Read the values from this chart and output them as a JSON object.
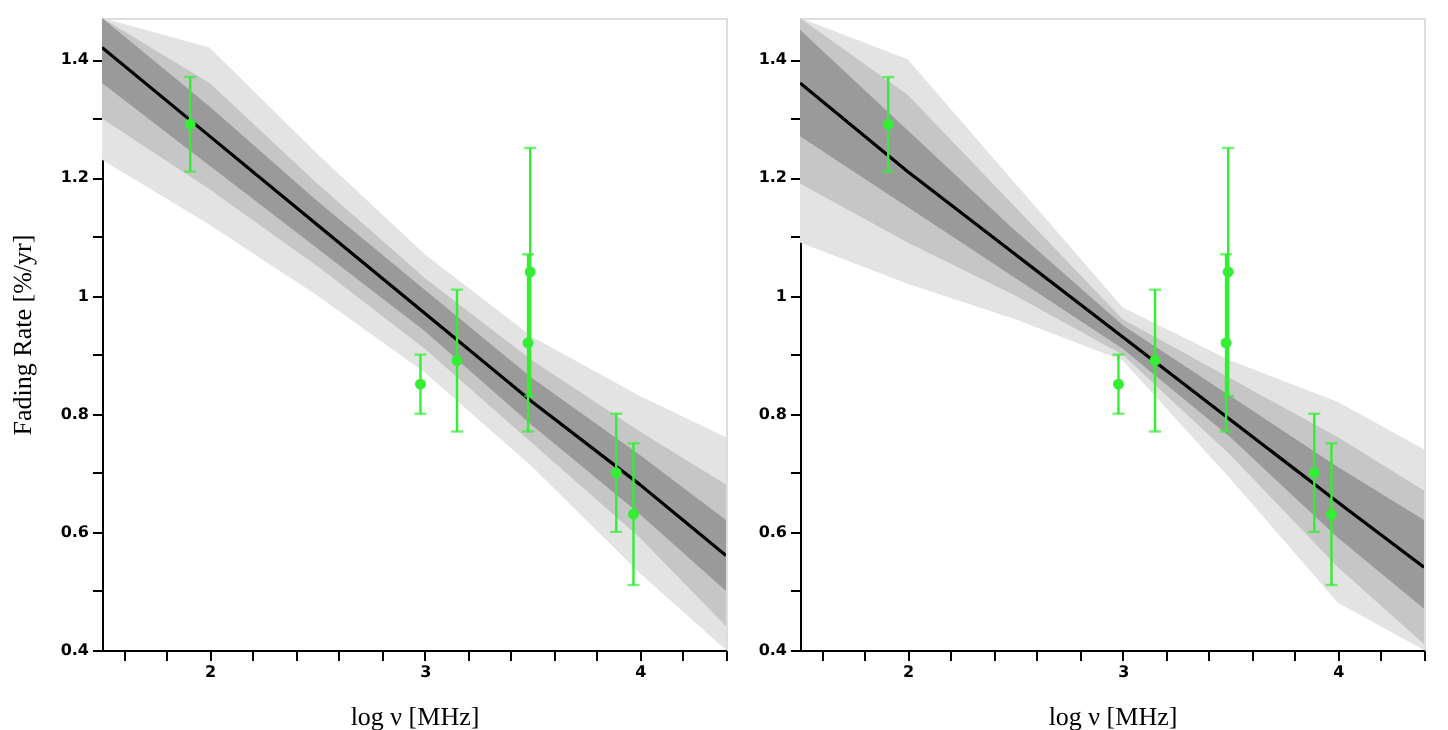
{
  "chart_data": [
    {
      "type": "scatter",
      "xlabel": "log ν [MHz]",
      "ylabel": "Fading Rate [%/yr]",
      "xlim": [
        1.5,
        4.4
      ],
      "ylim": [
        0.4,
        1.47
      ],
      "xticks": [
        {
          "value": 1.6,
          "label": null
        },
        {
          "value": 1.8,
          "label": null
        },
        2,
        {
          "value": 2.2,
          "label": null
        },
        {
          "value": 2.4,
          "label": null
        },
        {
          "value": 2.6,
          "label": null
        },
        {
          "value": 2.8,
          "label": null
        },
        3,
        {
          "value": 3.2,
          "label": null
        },
        {
          "value": 3.4,
          "label": null
        },
        {
          "value": 3.6,
          "label": null
        },
        {
          "value": 3.8,
          "label": null
        },
        4,
        {
          "value": 4.2,
          "label": null
        },
        {
          "value": 4.4,
          "label": null
        }
      ],
      "yticks": [
        0.4,
        {
          "value": 0.5,
          "label": null
        },
        0.6,
        {
          "value": 0.7,
          "label": null
        },
        0.8,
        {
          "value": 0.9,
          "label": null
        },
        1,
        {
          "value": 1.1,
          "label": null
        },
        1.2,
        {
          "value": 1.3,
          "label": null
        },
        1.4
      ],
      "grid": false,
      "series": [
        {
          "type": "line",
          "color": "#e3e3e3",
          "x": [
            1.5,
            2,
            2.5,
            3,
            3.5,
            4,
            4.4
          ],
          "values": [
            null,
            null,
            null,
            null,
            null,
            null,
            null
          ],
          "lower": [
            1.23,
            1.12,
            1.0,
            0.87,
            0.71,
            0.53,
            0.4
          ],
          "upper": [
            1.47,
            1.42,
            1.24,
            1.07,
            0.93,
            0.83,
            0.76
          ]
        },
        {
          "type": "line",
          "color": "#c6c6c6",
          "x": [
            1.5,
            2,
            2.5,
            3,
            3.5,
            4,
            4.4
          ],
          "values": [
            null,
            null,
            null,
            null,
            null,
            null,
            null
          ],
          "lower": [
            1.3,
            1.18,
            1.05,
            0.91,
            0.75,
            0.59,
            0.44
          ],
          "upper": [
            1.47,
            1.36,
            1.19,
            1.03,
            0.89,
            0.77,
            0.68
          ]
        },
        {
          "type": "line",
          "color": "#9a9a9a",
          "x": [
            1.5,
            2,
            2.5,
            3,
            3.5,
            4,
            4.4
          ],
          "values": [
            null,
            null,
            null,
            null,
            null,
            null,
            null
          ],
          "lower": [
            1.36,
            1.22,
            1.08,
            0.94,
            0.78,
            0.63,
            0.5
          ],
          "upper": [
            1.47,
            1.32,
            1.16,
            1.01,
            0.86,
            0.73,
            0.62
          ]
        },
        {
          "type": "line",
          "color": "#000000",
          "line_style": "solid",
          "marker": "none",
          "x": [
            1.5,
            2,
            2.5,
            3,
            3.5,
            4,
            4.4
          ],
          "values": [
            1.42,
            1.27,
            1.12,
            0.97,
            0.82,
            0.68,
            0.56
          ]
        },
        {
          "color": "#33ee33",
          "marker": "circle",
          "x": [
            1.91,
            2.98,
            3.15,
            3.48,
            3.49,
            3.89,
            3.97
          ],
          "values": [
            1.29,
            0.85,
            0.89,
            0.92,
            1.04,
            0.7,
            0.63
          ],
          "errors": [
            [
              1.21,
              1.37
            ],
            [
              0.8,
              0.9
            ],
            [
              0.77,
              1.01
            ],
            [
              0.77,
              1.07
            ],
            [
              0.83,
              1.25
            ],
            [
              0.6,
              0.8
            ],
            [
              0.51,
              0.75
            ]
          ]
        }
      ]
    },
    {
      "type": "scatter",
      "xlabel": "log ν [MHz]",
      "xlim": [
        1.5,
        4.4
      ],
      "ylim": [
        0.4,
        1.47
      ],
      "xticks": [
        {
          "value": 1.6,
          "label": null
        },
        {
          "value": 1.8,
          "label": null
        },
        2,
        {
          "value": 2.2,
          "label": null
        },
        {
          "value": 2.4,
          "label": null
        },
        {
          "value": 2.6,
          "label": null
        },
        {
          "value": 2.8,
          "label": null
        },
        3,
        {
          "value": 3.2,
          "label": null
        },
        {
          "value": 3.4,
          "label": null
        },
        {
          "value": 3.6,
          "label": null
        },
        {
          "value": 3.8,
          "label": null
        },
        4,
        {
          "value": 4.2,
          "label": null
        },
        {
          "value": 4.4,
          "label": null
        }
      ],
      "yticks": [
        0.4,
        {
          "value": 0.5,
          "label": null
        },
        0.6,
        {
          "value": 0.7,
          "label": null
        },
        0.8,
        {
          "value": 0.9,
          "label": null
        },
        1,
        {
          "value": 1.1,
          "label": null
        },
        1.2,
        {
          "value": 1.3,
          "label": null
        },
        1.4
      ],
      "grid": false,
      "series": [
        {
          "type": "line",
          "color": "#e3e3e3",
          "x": [
            1.5,
            2,
            2.5,
            3,
            3.5,
            4,
            4.4
          ],
          "values": [
            null,
            null,
            null,
            null,
            null,
            null,
            null
          ],
          "lower": [
            1.09,
            1.02,
            0.96,
            0.89,
            0.69,
            0.48,
            0.4
          ],
          "upper": [
            1.47,
            1.4,
            1.19,
            0.98,
            0.89,
            0.82,
            0.74
          ]
        },
        {
          "type": "line",
          "color": "#c6c6c6",
          "x": [
            1.5,
            2,
            2.5,
            3,
            3.5,
            4,
            4.4
          ],
          "values": [
            null,
            null,
            null,
            null,
            null,
            null,
            null
          ],
          "lower": [
            1.19,
            1.09,
            1.0,
            0.9,
            0.73,
            0.54,
            0.41
          ],
          "upper": [
            1.47,
            1.34,
            1.15,
            0.96,
            0.86,
            0.76,
            0.67
          ]
        },
        {
          "type": "line",
          "color": "#9a9a9a",
          "x": [
            1.5,
            2,
            2.5,
            3,
            3.5,
            4,
            4.4
          ],
          "values": [
            null,
            null,
            null,
            null,
            null,
            null,
            null
          ],
          "lower": [
            1.27,
            1.15,
            1.03,
            0.91,
            0.76,
            0.59,
            0.47
          ],
          "upper": [
            1.45,
            1.28,
            1.11,
            0.95,
            0.83,
            0.71,
            0.62
          ]
        },
        {
          "type": "line",
          "color": "#000000",
          "line_style": "solid",
          "marker": "none",
          "x": [
            1.5,
            2,
            2.5,
            3,
            3.5,
            4,
            4.4
          ],
          "values": [
            1.36,
            1.21,
            1.07,
            0.93,
            0.79,
            0.65,
            0.54
          ]
        },
        {
          "color": "#33ee33",
          "marker": "circle",
          "x": [
            1.91,
            2.98,
            3.15,
            3.48,
            3.49,
            3.89,
            3.97
          ],
          "values": [
            1.29,
            0.85,
            0.89,
            0.92,
            1.04,
            0.7,
            0.63
          ],
          "errors": [
            [
              1.21,
              1.37
            ],
            [
              0.8,
              0.9
            ],
            [
              0.77,
              1.01
            ],
            [
              0.77,
              1.07
            ],
            [
              0.83,
              1.25
            ],
            [
              0.6,
              0.8
            ],
            [
              0.51,
              0.75
            ]
          ]
        }
      ]
    }
  ]
}
